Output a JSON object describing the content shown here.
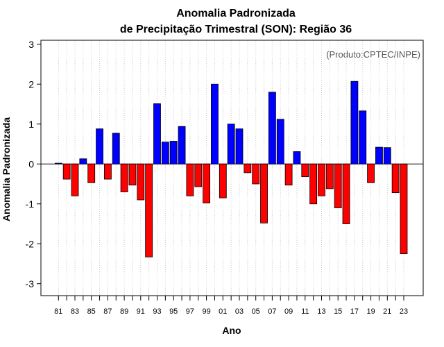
{
  "chart_data": {
    "type": "bar",
    "title_line1": "Anomalia Padronizada",
    "title_line2": "de Precipitação Trimestral (SON): Região 36",
    "xlabel": "Ano",
    "ylabel": "Anomalia Padronizada",
    "credit": "(Produto:CPTEC/INPE)",
    "ylim": [
      -3.3,
      3.1
    ],
    "yticks": [
      "3",
      "2",
      "1",
      "0",
      "-1",
      "-2",
      "-3"
    ],
    "ytick_values": [
      3,
      2,
      1,
      0,
      -1,
      -2,
      -3
    ],
    "xtick_labels": [
      "81",
      "83",
      "85",
      "87",
      "89",
      "91",
      "93",
      "95",
      "97",
      "99",
      "01",
      "03",
      "05",
      "07",
      "09",
      "11",
      "13",
      "15",
      "17",
      "19",
      "21",
      "23"
    ],
    "years": [
      1981,
      1982,
      1983,
      1984,
      1985,
      1986,
      1987,
      1988,
      1989,
      1990,
      1991,
      1992,
      1993,
      1994,
      1995,
      1996,
      1997,
      1998,
      1999,
      2000,
      2001,
      2002,
      2003,
      2004,
      2005,
      2006,
      2007,
      2008,
      2009,
      2010,
      2011,
      2012,
      2013,
      2014,
      2015,
      2016,
      2017,
      2018,
      2019,
      2020,
      2021,
      2022,
      2023
    ],
    "values": [
      0.02,
      -0.38,
      -0.8,
      0.13,
      -0.47,
      0.88,
      -0.38,
      0.77,
      -0.7,
      -0.53,
      -0.9,
      -2.33,
      1.51,
      0.55,
      0.57,
      0.94,
      -0.8,
      -0.57,
      -0.98,
      2.0,
      -0.85,
      1.0,
      0.88,
      -0.22,
      -0.5,
      -1.48,
      1.8,
      1.12,
      -0.53,
      0.31,
      -0.32,
      -1.0,
      -0.8,
      -0.62,
      -1.1,
      -1.5,
      2.07,
      1.33,
      -0.47,
      0.42,
      0.41,
      -0.72,
      -2.25
    ],
    "colors": {
      "positive": "#0000ff",
      "negative": "#ff0000",
      "grid": "#cccccc"
    }
  }
}
